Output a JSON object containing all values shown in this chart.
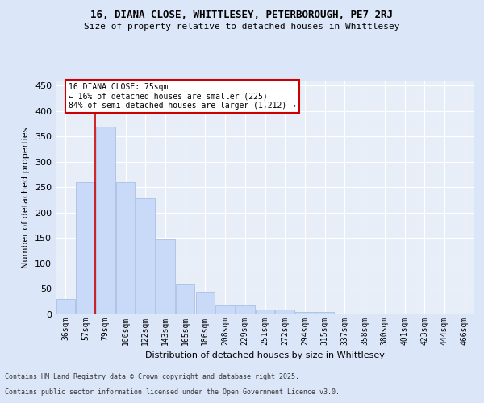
{
  "title_line1": "16, DIANA CLOSE, WHITTLESEY, PETERBOROUGH, PE7 2RJ",
  "title_line2": "Size of property relative to detached houses in Whittlesey",
  "xlabel": "Distribution of detached houses by size in Whittlesey",
  "ylabel": "Number of detached properties",
  "categories": [
    "36sqm",
    "57sqm",
    "79sqm",
    "100sqm",
    "122sqm",
    "143sqm",
    "165sqm",
    "186sqm",
    "208sqm",
    "229sqm",
    "251sqm",
    "272sqm",
    "294sqm",
    "315sqm",
    "337sqm",
    "358sqm",
    "380sqm",
    "401sqm",
    "423sqm",
    "444sqm",
    "466sqm"
  ],
  "values": [
    30,
    260,
    370,
    260,
    228,
    148,
    60,
    44,
    18,
    18,
    10,
    10,
    5,
    5,
    1,
    1,
    1,
    1,
    1,
    1,
    1
  ],
  "bar_color": "#c9daf8",
  "bar_edge_color": "#a0b8e0",
  "property_size": "75sqm",
  "annotation_text_line1": "16 DIANA CLOSE: 75sqm",
  "annotation_text_line2": "← 16% of detached houses are smaller (225)",
  "annotation_text_line3": "84% of semi-detached houses are larger (1,212) →",
  "vline_x_index": 1.5,
  "ylim": [
    0,
    460
  ],
  "yticks": [
    0,
    50,
    100,
    150,
    200,
    250,
    300,
    350,
    400,
    450
  ],
  "footer_line1": "Contains HM Land Registry data © Crown copyright and database right 2025.",
  "footer_line2": "Contains public sector information licensed under the Open Government Licence v3.0.",
  "bg_color": "#dce6f9",
  "plot_bg_color": "#e8eef8",
  "grid_color": "#ffffff",
  "annotation_box_color": "#ffffff",
  "annotation_box_edge_color": "#cc0000",
  "vline_color": "#cc0000"
}
